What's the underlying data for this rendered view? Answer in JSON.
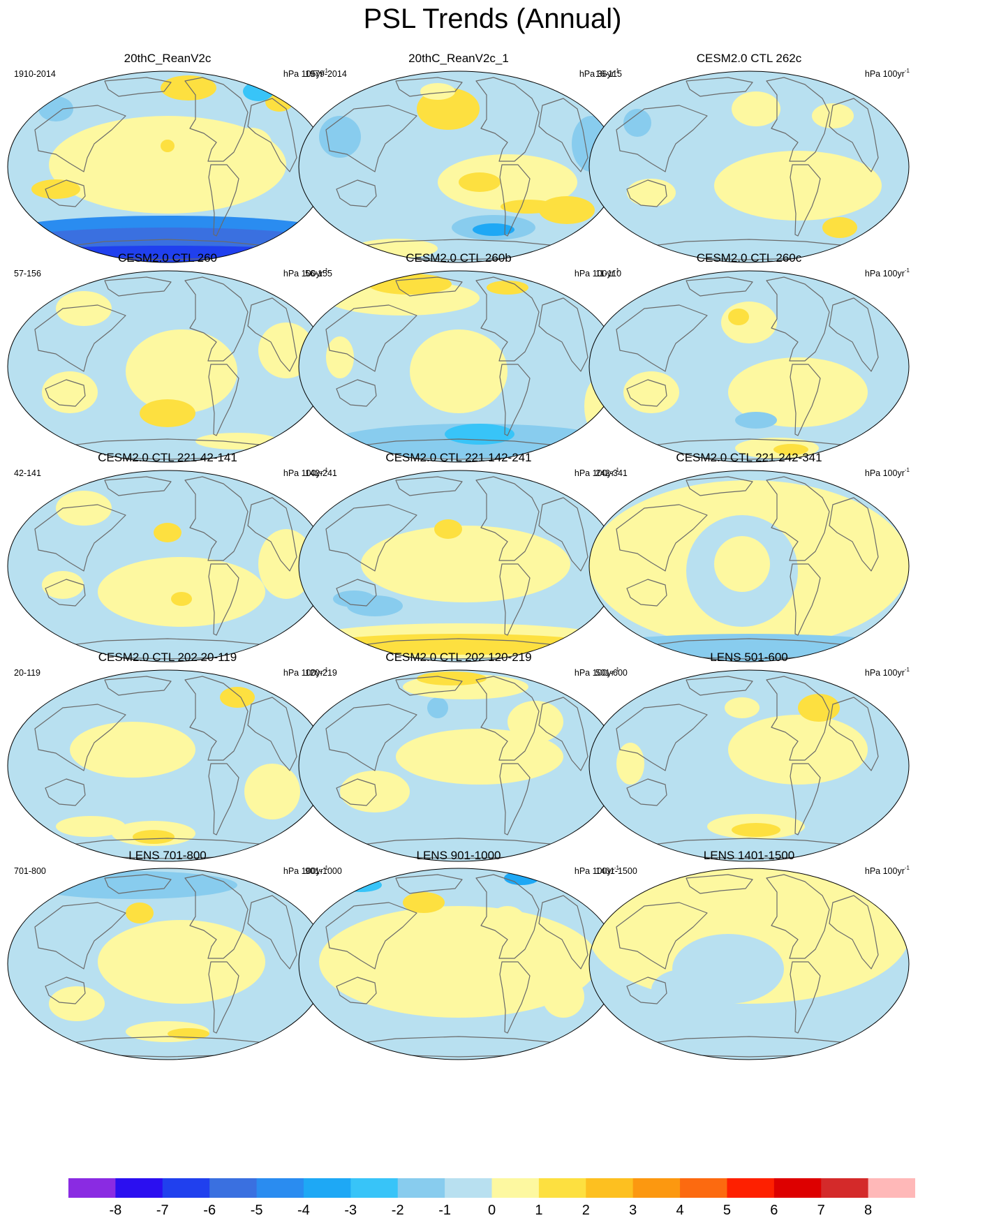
{
  "title": "PSL Trends (Annual)",
  "panels": [
    {
      "title": "20thC_ReanV2c",
      "period": "1910-2014",
      "units": "hPa 105yr",
      "units_exp": "-1"
    },
    {
      "title": "20thC_ReanV2c_1",
      "period": "1979-2014",
      "units": "hPa 36yr",
      "units_exp": "-1"
    },
    {
      "title": "CESM2.0 CTL 262c",
      "period": "16-115",
      "units": "hPa 100yr",
      "units_exp": "-1"
    },
    {
      "title": "CESM2.0 CTL 260",
      "period": "57-156",
      "units": "hPa 100yr",
      "units_exp": "-1"
    },
    {
      "title": "CESM2.0 CTL 260b",
      "period": "56-155",
      "units": "hPa 100yr",
      "units_exp": "-1"
    },
    {
      "title": "CESM2.0 CTL 260c",
      "period": "11-110",
      "units": "hPa 100yr",
      "units_exp": "-1"
    },
    {
      "title": "CESM2.0 CTL 221 42-141",
      "period": "42-141",
      "units": "hPa 100yr",
      "units_exp": "-1"
    },
    {
      "title": "CESM2.0 CTL 221 142-241",
      "period": "142-241",
      "units": "hPa 100yr",
      "units_exp": "-1"
    },
    {
      "title": "CESM2.0 CTL 221 242-341",
      "period": "242-341",
      "units": "hPa 100yr",
      "units_exp": "-1"
    },
    {
      "title": "CESM2.0 CTL 202 20-119",
      "period": "20-119",
      "units": "hPa 100yr",
      "units_exp": "-1"
    },
    {
      "title": "CESM2.0 CTL 202 120-219",
      "period": "120-219",
      "units": "hPa 100yr",
      "units_exp": "-1"
    },
    {
      "title": "LENS 501-600",
      "period": "501-600",
      "units": "hPa 100yr",
      "units_exp": "-1"
    },
    {
      "title": "LENS 701-800",
      "period": "701-800",
      "units": "hPa 100yr",
      "units_exp": "-1"
    },
    {
      "title": "LENS 901-1000",
      "period": "901-1000",
      "units": "hPa 100yr",
      "units_exp": "-1"
    },
    {
      "title": "LENS 1401-1500",
      "period": "1401-1500",
      "units": "hPa 100yr",
      "units_exp": "-1"
    }
  ],
  "colorbar": {
    "labels": [
      "-8",
      "-7",
      "-6",
      "-5",
      "-4",
      "-3",
      "-2",
      "-1",
      "0",
      "1",
      "2",
      "3",
      "4",
      "5",
      "6",
      "7",
      "8"
    ],
    "colors": [
      "#8a2be2",
      "#2b0ff0",
      "#2040ee",
      "#3a70e0",
      "#2a8cf0",
      "#1ea8f5",
      "#38c4f8",
      "#88ccee",
      "#b8e0f0",
      "#fdf8a0",
      "#fde040",
      "#fdc020",
      "#fc9810",
      "#fc6a10",
      "#fe2000",
      "#dd0000",
      "#d42a2a",
      "#ffb8b8"
    ]
  }
}
